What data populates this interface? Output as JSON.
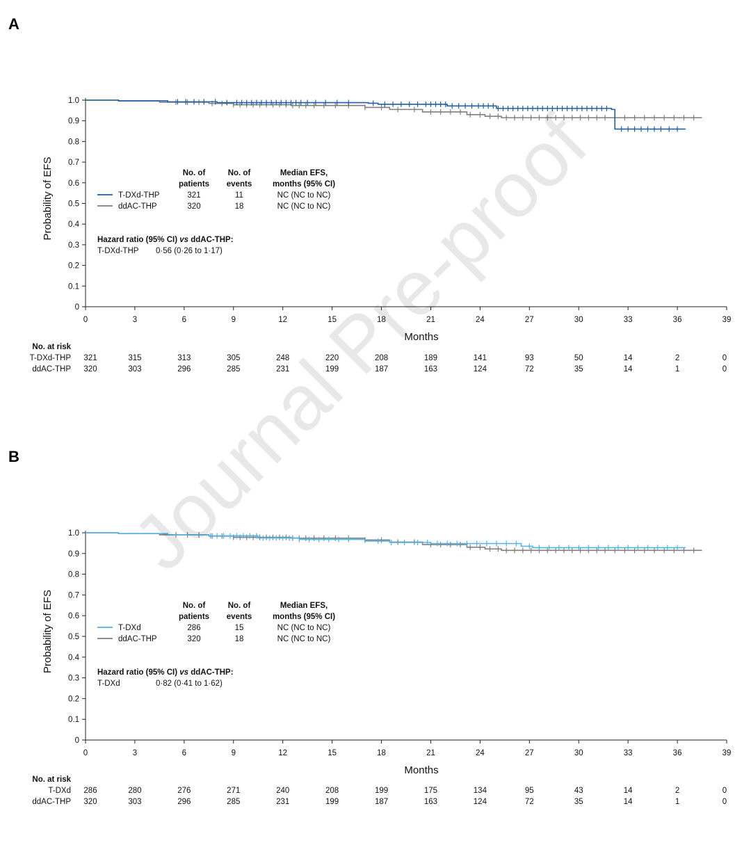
{
  "watermark": "Journal Pre-proof",
  "chart_data": [
    {
      "panel": "A",
      "type": "line",
      "subtype": "kaplan-meier",
      "xlabel": "Months",
      "ylabel": "Probability of EFS",
      "xlim": [
        0,
        39
      ],
      "ylim": [
        0,
        1.0
      ],
      "xticks": [
        0,
        3,
        6,
        9,
        12,
        15,
        18,
        21,
        24,
        27,
        30,
        33,
        36,
        39
      ],
      "yticks": [
        "0",
        "0.1",
        "0.2",
        "0.3",
        "0.4",
        "0.5",
        "0.6",
        "0.7",
        "0.8",
        "0.9",
        "1.0"
      ],
      "grid": false,
      "series": [
        {
          "name": "T-DXd-THP",
          "color": "#1f5fa8",
          "steps": [
            [
              0,
              1.0
            ],
            [
              2,
              0.997
            ],
            [
              5,
              0.992
            ],
            [
              8,
              0.988
            ],
            [
              17.2,
              0.985
            ],
            [
              17.8,
              0.98
            ],
            [
              22,
              0.972
            ],
            [
              25,
              0.96
            ],
            [
              32,
              0.955
            ],
            [
              32.2,
              0.86
            ],
            [
              36.5,
              0.86
            ]
          ],
          "censor_times": [
            5.6,
            6.1,
            6.6,
            7.2,
            7.9,
            8.6,
            9.2,
            9.5,
            9.8,
            10.1,
            10.4,
            10.7,
            11.0,
            11.3,
            11.6,
            11.9,
            12.2,
            12.5,
            12.8,
            13.1,
            13.5,
            14.0,
            14.6,
            15.3,
            16.0,
            17.5,
            18.2,
            18.7,
            19.2,
            19.7,
            20.2,
            20.7,
            21.0,
            21.3,
            21.6,
            21.9,
            22.3,
            22.7,
            23.1,
            23.5,
            23.9,
            24.2,
            24.5,
            24.8,
            25.1,
            25.4,
            25.7,
            26.0,
            26.3,
            26.6,
            26.9,
            27.2,
            27.5,
            27.8,
            28.1,
            28.4,
            28.7,
            29.0,
            29.3,
            29.6,
            29.9,
            30.2,
            30.5,
            30.8,
            31.1,
            31.4,
            31.7,
            32.6,
            33.0,
            33.4,
            33.8,
            34.2,
            34.6,
            35.0,
            35.5,
            36.0
          ]
        },
        {
          "name": "ddAC-THP",
          "color": "#7f7f7f",
          "steps": [
            [
              0,
              1.0
            ],
            [
              2,
              0.996
            ],
            [
              4.5,
              0.99
            ],
            [
              7.5,
              0.984
            ],
            [
              9,
              0.978
            ],
            [
              12.5,
              0.974
            ],
            [
              17,
              0.965
            ],
            [
              18.5,
              0.955
            ],
            [
              20.5,
              0.943
            ],
            [
              23.2,
              0.93
            ],
            [
              24.3,
              0.922
            ],
            [
              25.3,
              0.915
            ],
            [
              37.5,
              0.915
            ]
          ],
          "censor_times": [
            5.5,
            6.2,
            6.9,
            7.7,
            8.3,
            9.0,
            9.4,
            9.8,
            10.2,
            10.6,
            11.0,
            11.4,
            11.8,
            12.2,
            12.6,
            13.0,
            13.4,
            13.9,
            14.5,
            15.2,
            16.0,
            17.0,
            18.0,
            19.0,
            20.0,
            21.0,
            21.6,
            22.2,
            22.8,
            23.4,
            24.0,
            24.6,
            25.1,
            25.6,
            26.1,
            26.6,
            27.1,
            27.6,
            28.1,
            28.6,
            29.1,
            29.6,
            30.1,
            30.6,
            31.1,
            31.6,
            32.2,
            32.8,
            33.4,
            34.0,
            34.6,
            35.2,
            35.8,
            36.4,
            37.0
          ]
        }
      ],
      "legend_table": {
        "headers": [
          [
            "No. of",
            "patients"
          ],
          [
            "No. of",
            "events"
          ],
          [
            "Median EFS,",
            "months (95% CI)"
          ]
        ],
        "rows": [
          {
            "name": "T-DXd-THP",
            "patients": "321",
            "events": "11",
            "median": "NC (NC to NC)"
          },
          {
            "name": "ddAC-THP",
            "patients": "320",
            "events": "18",
            "median": "NC (NC to NC)"
          }
        ]
      },
      "hazard_ratio": {
        "title_pre": "Hazard ratio (95% CI) ",
        "title_vs": "vs",
        "title_post": " ddAC-THP:",
        "arm": "T-DXd-THP",
        "value": "0·56 (0·26 to 1·17)"
      },
      "risk_table": {
        "title": "No. at risk",
        "rows": [
          {
            "name": "T-DXd-THP",
            "values": [
              "321",
              "315",
              "313",
              "305",
              "248",
              "220",
              "208",
              "189",
              "141",
              "93",
              "50",
              "14",
              "2",
              "0"
            ]
          },
          {
            "name": "ddAC-THP",
            "values": [
              "320",
              "303",
              "296",
              "285",
              "231",
              "199",
              "187",
              "163",
              "124",
              "72",
              "35",
              "14",
              "1",
              "0"
            ]
          }
        ]
      }
    },
    {
      "panel": "B",
      "type": "line",
      "subtype": "kaplan-meier",
      "xlabel": "Months",
      "ylabel": "Probability of EFS",
      "xlim": [
        0,
        39
      ],
      "ylim": [
        0,
        1.0
      ],
      "xticks": [
        0,
        3,
        6,
        9,
        12,
        15,
        18,
        21,
        24,
        27,
        30,
        33,
        36,
        39
      ],
      "yticks": [
        "0",
        "0.1",
        "0.2",
        "0.3",
        "0.4",
        "0.5",
        "0.6",
        "0.7",
        "0.8",
        "0.9",
        "1.0"
      ],
      "grid": false,
      "series": [
        {
          "name": "T-DXd",
          "color": "#4fb3e8",
          "steps": [
            [
              0,
              1.0
            ],
            [
              2,
              0.996
            ],
            [
              5,
              0.99
            ],
            [
              7.5,
              0.985
            ],
            [
              10.5,
              0.975
            ],
            [
              13,
              0.968
            ],
            [
              17,
              0.96
            ],
            [
              18.5,
              0.953
            ],
            [
              21,
              0.948
            ],
            [
              26.5,
              0.935
            ],
            [
              27.2,
              0.928
            ],
            [
              36.5,
              0.928
            ]
          ],
          "censor_times": [
            7.6,
            8.0,
            8.4,
            8.8,
            9.2,
            9.6,
            10.0,
            10.4,
            10.8,
            11.2,
            11.6,
            12.0,
            12.4,
            13.0,
            13.6,
            14.2,
            14.8,
            15.4,
            16.0,
            17.8,
            18.6,
            19.4,
            20.2,
            20.8,
            21.4,
            22.0,
            22.6,
            23.2,
            23.8,
            24.4,
            25.0,
            25.6,
            26.2,
            27.0,
            27.6,
            28.2,
            28.8,
            29.4,
            30.0,
            30.6,
            31.2,
            31.8,
            32.4,
            33.0,
            33.6,
            34.2,
            34.8,
            35.4,
            36.0
          ]
        },
        {
          "name": "ddAC-THP",
          "color": "#7f7f7f",
          "steps": [
            [
              0,
              1.0
            ],
            [
              2,
              0.996
            ],
            [
              4.5,
              0.99
            ],
            [
              7.5,
              0.984
            ],
            [
              9,
              0.978
            ],
            [
              12.5,
              0.974
            ],
            [
              17,
              0.965
            ],
            [
              18.5,
              0.955
            ],
            [
              20.5,
              0.943
            ],
            [
              23.2,
              0.93
            ],
            [
              24.3,
              0.922
            ],
            [
              25.3,
              0.915
            ],
            [
              37.5,
              0.915
            ]
          ],
          "censor_times": [
            5.5,
            6.2,
            6.9,
            7.7,
            8.3,
            9.0,
            9.4,
            9.8,
            10.2,
            10.6,
            11.0,
            11.4,
            11.8,
            12.2,
            12.6,
            13.0,
            13.4,
            13.9,
            14.5,
            15.2,
            16.0,
            17.0,
            18.0,
            19.0,
            20.0,
            21.0,
            21.6,
            22.2,
            22.8,
            23.4,
            24.0,
            24.6,
            25.1,
            25.6,
            26.1,
            26.6,
            27.1,
            27.6,
            28.1,
            28.6,
            29.1,
            29.6,
            30.1,
            30.6,
            31.1,
            31.6,
            32.2,
            32.8,
            33.4,
            34.0,
            34.6,
            35.2,
            35.8,
            36.4,
            37.0
          ]
        }
      ],
      "legend_table": {
        "headers": [
          [
            "No. of",
            "patients"
          ],
          [
            "No. of",
            "events"
          ],
          [
            "Median EFS,",
            "months (95% CI)"
          ]
        ],
        "rows": [
          {
            "name": "T-DXd",
            "patients": "286",
            "events": "15",
            "median": "NC (NC to NC)"
          },
          {
            "name": "ddAC-THP",
            "patients": "320",
            "events": "18",
            "median": "NC (NC to NC)"
          }
        ]
      },
      "hazard_ratio": {
        "title_pre": "Hazard ratio (95% CI) ",
        "title_vs": "vs",
        "title_post": " ddAC-THP:",
        "arm": "T-DXd",
        "value": "0·82 (0·41 to 1·62)"
      },
      "risk_table": {
        "title": "No. at risk",
        "rows": [
          {
            "name": "T-DXd",
            "values": [
              "286",
              "280",
              "276",
              "271",
              "240",
              "208",
              "199",
              "175",
              "134",
              "95",
              "43",
              "14",
              "2",
              "0"
            ]
          },
          {
            "name": "ddAC-THP",
            "values": [
              "320",
              "303",
              "296",
              "285",
              "231",
              "199",
              "187",
              "163",
              "124",
              "72",
              "35",
              "14",
              "1",
              "0"
            ]
          }
        ]
      }
    }
  ]
}
